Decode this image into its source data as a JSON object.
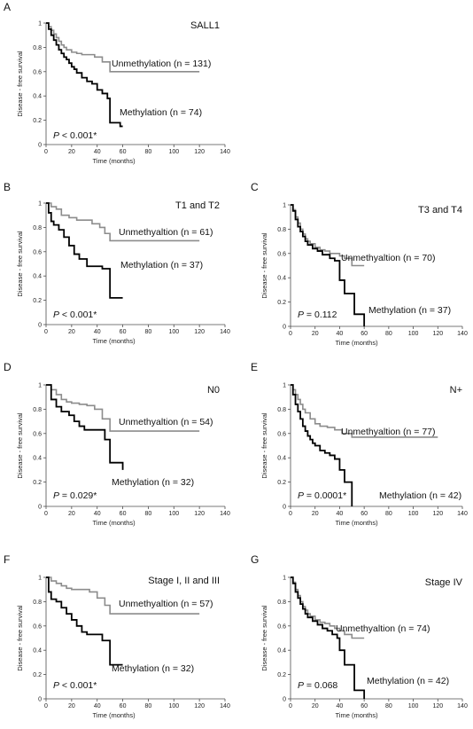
{
  "figure": {
    "y_axis_label": "Disease - free survival",
    "x_axis_label": "Time (months)",
    "x_ticks": [
      0,
      20,
      40,
      60,
      80,
      100,
      120,
      140
    ],
    "y_ticks": [
      0,
      0.2,
      0.4,
      0.6,
      0.8,
      1
    ],
    "y_tick_labels": [
      "0",
      "0.2",
      "0.4",
      "0.6",
      "0.8",
      "1"
    ],
    "colors": {
      "methylation": "#000000",
      "unmethylation": "#8c8c8c"
    }
  },
  "chart_data": [
    {
      "type": "line",
      "letter": "A",
      "title": "SALL1",
      "xlim": [
        0,
        140
      ],
      "ylim": [
        0,
        1
      ],
      "p_prefix": "P",
      "p_text": " < 0.001*",
      "series": [
        {
          "key": "unmethylation",
          "name": "Unmethylation (n = 131)",
          "x": [
            0,
            2,
            4,
            6,
            8,
            10,
            12,
            14,
            16,
            20,
            24,
            28,
            32,
            38,
            44,
            50,
            120
          ],
          "y": [
            1,
            0.97,
            0.94,
            0.91,
            0.88,
            0.85,
            0.82,
            0.8,
            0.78,
            0.76,
            0.75,
            0.74,
            0.74,
            0.72,
            0.68,
            0.6,
            0.6
          ]
        },
        {
          "key": "methylation",
          "name": "Methylation (n = 74)",
          "x": [
            0,
            2,
            4,
            6,
            8,
            10,
            12,
            14,
            16,
            18,
            20,
            22,
            24,
            28,
            32,
            36,
            40,
            44,
            48,
            50,
            54,
            58,
            60
          ],
          "y": [
            1,
            0.95,
            0.9,
            0.86,
            0.82,
            0.78,
            0.75,
            0.72,
            0.7,
            0.67,
            0.64,
            0.62,
            0.59,
            0.55,
            0.52,
            0.5,
            0.45,
            0.42,
            0.38,
            0.18,
            0.18,
            0.15,
            0.15
          ]
        }
      ]
    },
    {
      "type": "line",
      "letter": "B",
      "title": "T1 and T2",
      "xlim": [
        0,
        140
      ],
      "ylim": [
        0,
        1
      ],
      "p_prefix": "P",
      "p_text": " < 0.001*",
      "series": [
        {
          "key": "unmethylation",
          "name": "Unmethyaltion (n = 61)",
          "x": [
            0,
            4,
            8,
            12,
            18,
            24,
            30,
            36,
            42,
            46,
            50,
            120
          ],
          "y": [
            1,
            0.97,
            0.95,
            0.9,
            0.88,
            0.86,
            0.86,
            0.83,
            0.8,
            0.75,
            0.69,
            0.69
          ]
        },
        {
          "key": "methylation",
          "name": "Methylation (n = 37)",
          "x": [
            0,
            2,
            4,
            6,
            10,
            14,
            18,
            22,
            26,
            32,
            38,
            44,
            50,
            56,
            60
          ],
          "y": [
            1,
            0.92,
            0.85,
            0.82,
            0.78,
            0.72,
            0.65,
            0.58,
            0.54,
            0.48,
            0.48,
            0.46,
            0.22,
            0.22,
            0.22
          ]
        }
      ]
    },
    {
      "type": "line",
      "letter": "C",
      "title": "T3 and T4",
      "xlim": [
        0,
        140
      ],
      "ylim": [
        0,
        1
      ],
      "p_prefix": "P",
      "p_text": " = 0.112",
      "series": [
        {
          "key": "unmethylation",
          "name": "Unmethyaltion (n = 70)",
          "x": [
            0,
            2,
            4,
            6,
            8,
            10,
            12,
            14,
            16,
            20,
            24,
            28,
            32,
            36,
            40,
            44,
            50,
            60
          ],
          "y": [
            1,
            0.96,
            0.9,
            0.85,
            0.8,
            0.76,
            0.72,
            0.7,
            0.68,
            0.65,
            0.63,
            0.62,
            0.6,
            0.6,
            0.58,
            0.56,
            0.5,
            0.5
          ]
        },
        {
          "key": "methylation",
          "name": "Methylation (n = 37)",
          "x": [
            0,
            2,
            4,
            6,
            8,
            10,
            12,
            14,
            18,
            22,
            26,
            32,
            36,
            40,
            44,
            48,
            52,
            56,
            60
          ],
          "y": [
            1,
            0.95,
            0.88,
            0.82,
            0.78,
            0.74,
            0.7,
            0.67,
            0.64,
            0.62,
            0.59,
            0.56,
            0.54,
            0.38,
            0.27,
            0.27,
            0.1,
            0.1,
            0
          ]
        }
      ]
    },
    {
      "type": "line",
      "letter": "D",
      "title": "N0",
      "xlim": [
        0,
        140
      ],
      "ylim": [
        0,
        1
      ],
      "p_prefix": "P",
      "p_text": " = 0.029*",
      "series": [
        {
          "key": "unmethylation",
          "name": "Unmethyaltion (n = 54)",
          "x": [
            0,
            4,
            8,
            12,
            16,
            20,
            26,
            32,
            38,
            44,
            50,
            120
          ],
          "y": [
            1,
            0.96,
            0.92,
            0.88,
            0.86,
            0.85,
            0.84,
            0.83,
            0.8,
            0.72,
            0.62,
            0.62
          ]
        },
        {
          "key": "methylation",
          "name": "Methylation (n = 32)",
          "x": [
            0,
            4,
            8,
            12,
            18,
            22,
            26,
            30,
            38,
            46,
            50,
            56,
            60
          ],
          "y": [
            1,
            0.88,
            0.82,
            0.78,
            0.75,
            0.7,
            0.66,
            0.63,
            0.63,
            0.55,
            0.36,
            0.36,
            0.3
          ]
        }
      ]
    },
    {
      "type": "line",
      "letter": "E",
      "title": "N+",
      "xlim": [
        0,
        140
      ],
      "ylim": [
        0,
        1
      ],
      "p_prefix": "P",
      "p_text": " = 0.0001*",
      "series": [
        {
          "key": "unmethylation",
          "name": "Unmethyaltion (n = 77)",
          "x": [
            0,
            2,
            4,
            6,
            8,
            10,
            12,
            16,
            20,
            24,
            30,
            36,
            42,
            50,
            120
          ],
          "y": [
            1,
            0.96,
            0.92,
            0.88,
            0.84,
            0.8,
            0.77,
            0.72,
            0.68,
            0.66,
            0.65,
            0.63,
            0.6,
            0.57,
            0.57
          ]
        },
        {
          "key": "methylation",
          "name": "Methylation (n = 42)",
          "x": [
            0,
            2,
            4,
            6,
            8,
            10,
            12,
            14,
            16,
            18,
            20,
            24,
            28,
            32,
            36,
            40,
            44,
            48,
            50
          ],
          "y": [
            1,
            0.92,
            0.84,
            0.78,
            0.72,
            0.66,
            0.62,
            0.58,
            0.55,
            0.52,
            0.5,
            0.46,
            0.44,
            0.42,
            0.39,
            0.3,
            0.2,
            0.2,
            0
          ]
        }
      ]
    },
    {
      "type": "line",
      "letter": "F",
      "title": "Stage I, II and III",
      "xlim": [
        0,
        140
      ],
      "ylim": [
        0,
        1
      ],
      "p_prefix": "P",
      "p_text": " < 0.001*",
      "series": [
        {
          "key": "unmethylation",
          "name": "Unmethyaltion (n = 57)",
          "x": [
            0,
            4,
            8,
            12,
            16,
            20,
            28,
            34,
            40,
            46,
            50,
            120
          ],
          "y": [
            1,
            0.97,
            0.95,
            0.93,
            0.91,
            0.9,
            0.9,
            0.88,
            0.83,
            0.77,
            0.7,
            0.7
          ]
        },
        {
          "key": "methylation",
          "name": "Methylation (n = 32)",
          "x": [
            0,
            2,
            4,
            8,
            12,
            16,
            20,
            24,
            28,
            32,
            40,
            44,
            48,
            50,
            56,
            60
          ],
          "y": [
            1,
            0.88,
            0.82,
            0.8,
            0.75,
            0.7,
            0.65,
            0.6,
            0.55,
            0.53,
            0.53,
            0.48,
            0.48,
            0.28,
            0.28,
            0.28
          ]
        }
      ]
    },
    {
      "type": "line",
      "letter": "G",
      "title": "Stage IV",
      "xlim": [
        0,
        140
      ],
      "ylim": [
        0,
        1
      ],
      "p_prefix": "P",
      "p_text": " = 0.068",
      "series": [
        {
          "key": "unmethylation",
          "name": "Unmethyaltion (n = 74)",
          "x": [
            0,
            2,
            4,
            6,
            8,
            10,
            12,
            14,
            16,
            20,
            24,
            28,
            32,
            36,
            40,
            44,
            50,
            60
          ],
          "y": [
            1,
            0.96,
            0.9,
            0.85,
            0.8,
            0.76,
            0.73,
            0.7,
            0.68,
            0.65,
            0.63,
            0.62,
            0.6,
            0.58,
            0.56,
            0.53,
            0.5,
            0.5
          ]
        },
        {
          "key": "methylation",
          "name": "Methylation (n = 42)",
          "x": [
            0,
            2,
            4,
            6,
            8,
            10,
            12,
            14,
            18,
            22,
            26,
            30,
            34,
            38,
            40,
            44,
            48,
            52,
            56,
            60
          ],
          "y": [
            1,
            0.95,
            0.88,
            0.83,
            0.78,
            0.74,
            0.7,
            0.67,
            0.64,
            0.61,
            0.58,
            0.56,
            0.53,
            0.5,
            0.4,
            0.28,
            0.28,
            0.07,
            0.07,
            0
          ]
        }
      ]
    }
  ]
}
